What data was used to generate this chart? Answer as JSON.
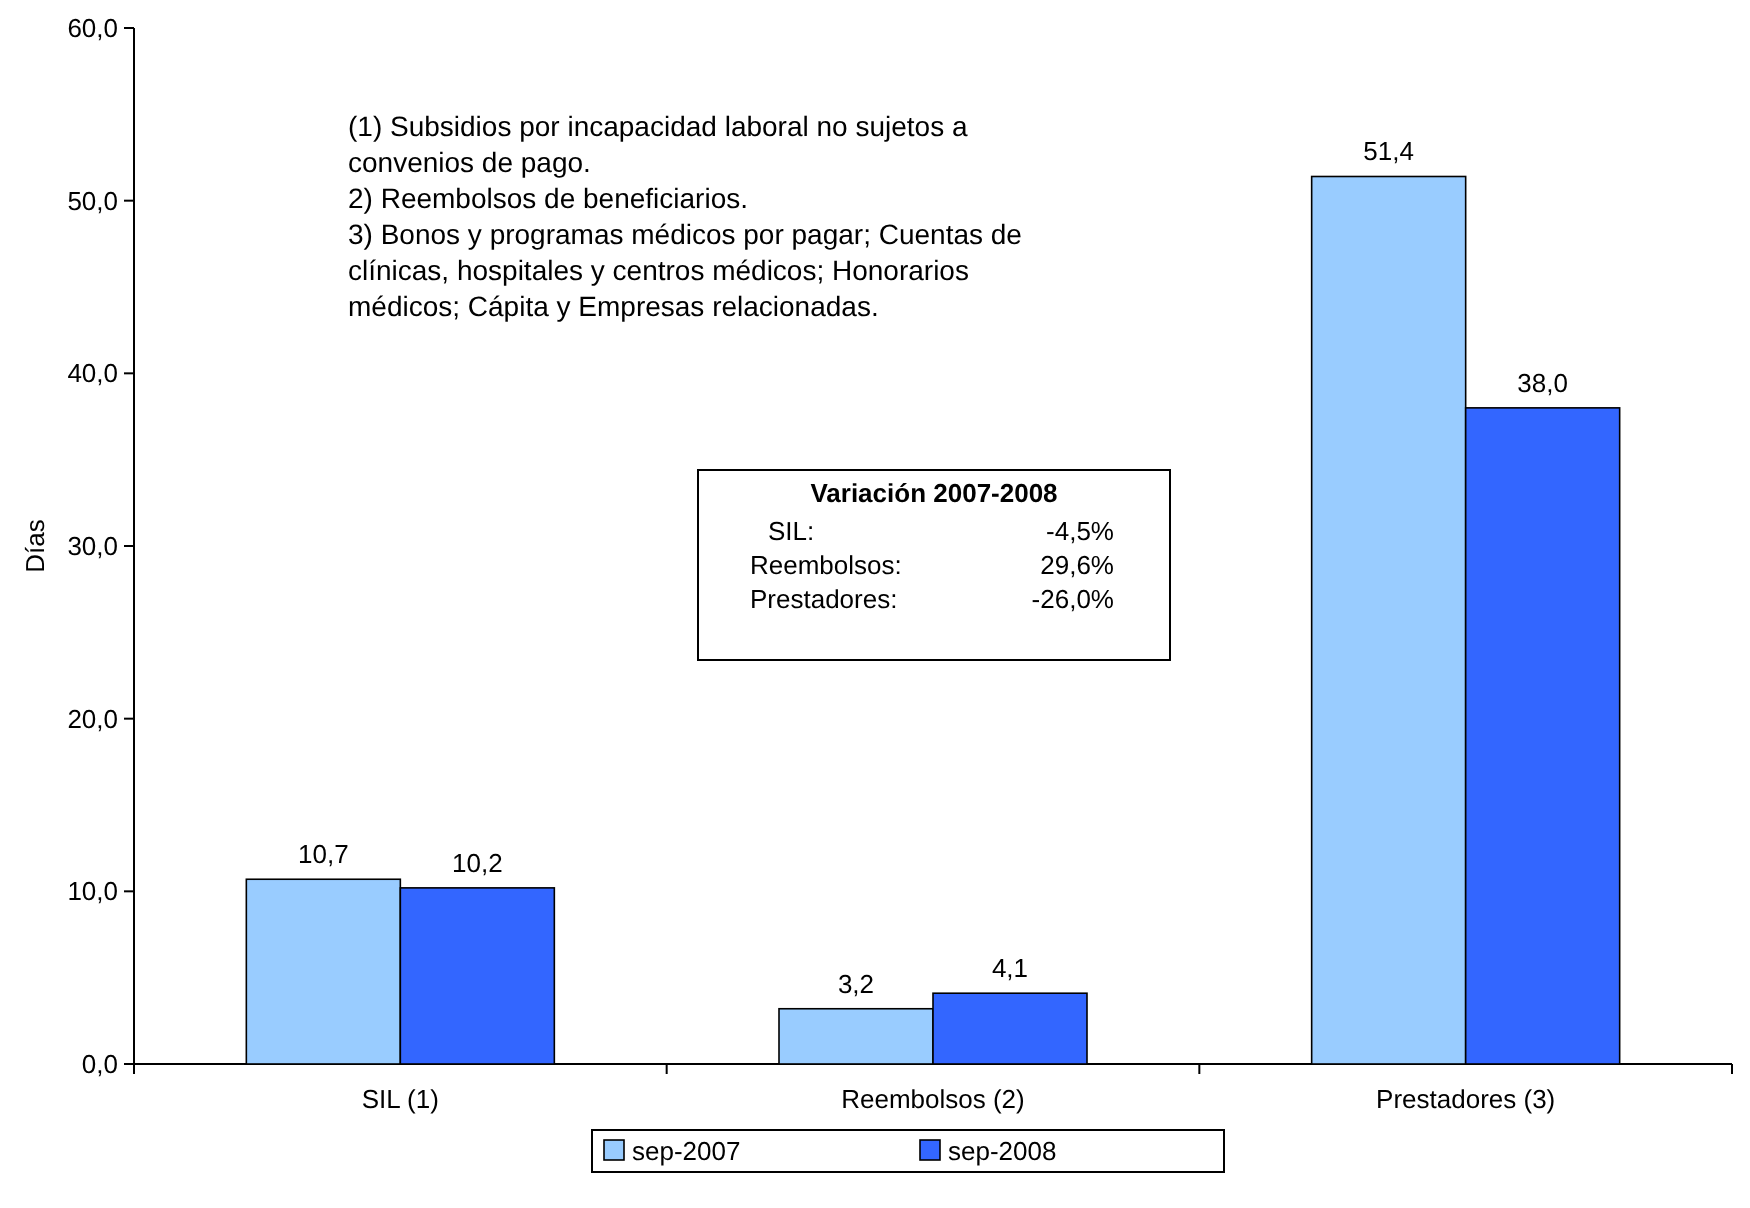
{
  "chart_data": {
    "type": "bar",
    "ylabel": "Días",
    "categories": [
      "SIL (1)",
      "Reembolsos (2)",
      "Prestadores (3)"
    ],
    "series": [
      {
        "name": "sep-2007",
        "color": "#99ccff",
        "values": [
          10.7,
          3.2,
          51.4
        ],
        "value_labels": [
          "10,7",
          "3,2",
          "51,4"
        ]
      },
      {
        "name": "sep-2008",
        "color": "#3366ff",
        "values": [
          10.2,
          4.1,
          38.0
        ],
        "value_labels": [
          "10,2",
          "4,1",
          "38,0"
        ]
      }
    ],
    "ylim": [
      0,
      60
    ],
    "yticks": [
      {
        "value": 0,
        "label": "0,0"
      },
      {
        "value": 10,
        "label": "10,0"
      },
      {
        "value": 20,
        "label": "20,0"
      },
      {
        "value": 30,
        "label": "30,0"
      },
      {
        "value": 40,
        "label": "40,0"
      },
      {
        "value": 50,
        "label": "50,0"
      },
      {
        "value": 60,
        "label": "60,0"
      }
    ],
    "legend": "bottom",
    "annotations": [
      "(1) Subsidios por incapacidad laboral no sujetos a convenios de pago.",
      "2) Reembolsos de beneficiarios.",
      "3) Bonos y programas médicos por pagar; Cuentas de clínicas, hospitales y centros médicos; Honorarios médicos; Cápita y Empresas relacionadas.",
      "Variación 2007-2008",
      "SIL: -4,5%",
      "Reembolsos: 29,6%",
      "Prestadores: -26,0%"
    ]
  }
}
